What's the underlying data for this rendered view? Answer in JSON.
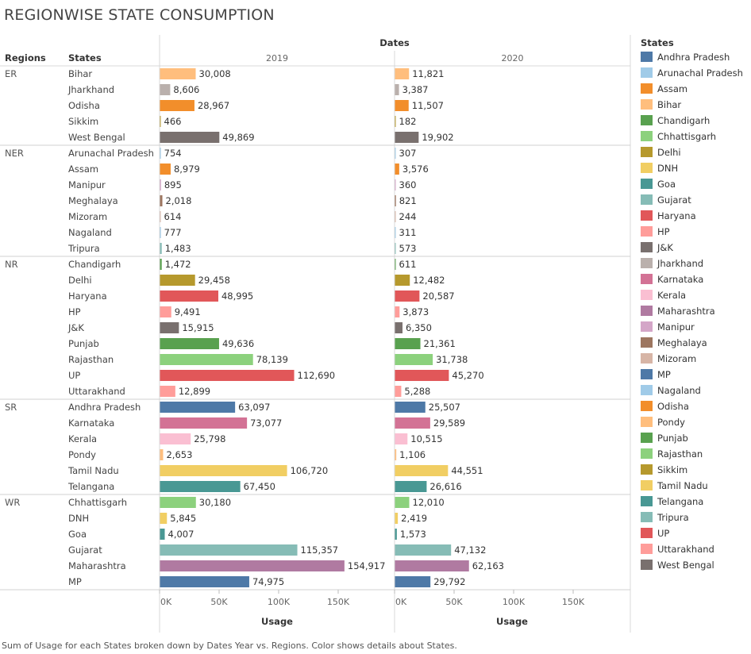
{
  "title": "REGIONWISE STATE CONSUMPTION",
  "caption": "Sum of Usage for each States broken down by Dates Year vs. Regions.  Color shows details about States.",
  "chart_data": {
    "type": "bar",
    "orientation": "horizontal",
    "title": "REGIONWISE STATE CONSUMPTION",
    "column_header": "Dates",
    "row_headers": [
      "Regions",
      "States"
    ],
    "years": [
      "2019",
      "2020"
    ],
    "xlabel": "Usage",
    "xlim": [
      0,
      200000
    ],
    "xticks": [
      0,
      50000,
      100000,
      150000
    ],
    "xtick_labels": [
      "0K",
      "50K",
      "100K",
      "150K"
    ],
    "legend_title": "States",
    "legend_placement": "right",
    "regions": [
      {
        "name": "ER",
        "states": [
          {
            "state": "Bihar",
            "v2019": 30008,
            "v2020": 11821
          },
          {
            "state": "Jharkhand",
            "v2019": 8606,
            "v2020": 3387
          },
          {
            "state": "Odisha",
            "v2019": 28967,
            "v2020": 11507
          },
          {
            "state": "Sikkim",
            "v2019": 466,
            "v2020": 182
          },
          {
            "state": "West Bengal",
            "v2019": 49869,
            "v2020": 19902
          }
        ]
      },
      {
        "name": "NER",
        "states": [
          {
            "state": "Arunachal Pradesh",
            "v2019": 754,
            "v2020": 307
          },
          {
            "state": "Assam",
            "v2019": 8979,
            "v2020": 3576
          },
          {
            "state": "Manipur",
            "v2019": 895,
            "v2020": 360
          },
          {
            "state": "Meghalaya",
            "v2019": 2018,
            "v2020": 821
          },
          {
            "state": "Mizoram",
            "v2019": 614,
            "v2020": 244
          },
          {
            "state": "Nagaland",
            "v2019": 777,
            "v2020": 311
          },
          {
            "state": "Tripura",
            "v2019": 1483,
            "v2020": 573
          }
        ]
      },
      {
        "name": "NR",
        "states": [
          {
            "state": "Chandigarh",
            "v2019": 1472,
            "v2020": 611
          },
          {
            "state": "Delhi",
            "v2019": 29458,
            "v2020": 12482
          },
          {
            "state": "Haryana",
            "v2019": 48995,
            "v2020": 20587
          },
          {
            "state": "HP",
            "v2019": 9491,
            "v2020": 3873
          },
          {
            "state": "J&K",
            "v2019": 15915,
            "v2020": 6350
          },
          {
            "state": "Punjab",
            "v2019": 49636,
            "v2020": 21361
          },
          {
            "state": "Rajasthan",
            "v2019": 78139,
            "v2020": 31738
          },
          {
            "state": "UP",
            "v2019": 112690,
            "v2020": 45270
          },
          {
            "state": "Uttarakhand",
            "v2019": 12899,
            "v2020": 5288
          }
        ]
      },
      {
        "name": "SR",
        "states": [
          {
            "state": "Andhra Pradesh",
            "v2019": 63097,
            "v2020": 25507
          },
          {
            "state": "Karnataka",
            "v2019": 73077,
            "v2020": 29589
          },
          {
            "state": "Kerala",
            "v2019": 25798,
            "v2020": 10515
          },
          {
            "state": "Pondy",
            "v2019": 2653,
            "v2020": 1106
          },
          {
            "state": "Tamil Nadu",
            "v2019": 106720,
            "v2020": 44551
          },
          {
            "state": "Telangana",
            "v2019": 67450,
            "v2020": 26616
          }
        ]
      },
      {
        "name": "WR",
        "states": [
          {
            "state": "Chhattisgarh",
            "v2019": 30180,
            "v2020": 12010
          },
          {
            "state": "DNH",
            "v2019": 5845,
            "v2020": 2419
          },
          {
            "state": "Goa",
            "v2019": 4007,
            "v2020": 1573
          },
          {
            "state": "Gujarat",
            "v2019": 115357,
            "v2020": 47132
          },
          {
            "state": "Maharashtra",
            "v2019": 154917,
            "v2020": 62163
          },
          {
            "state": "MP",
            "v2019": 74975,
            "v2020": 29792
          }
        ]
      }
    ],
    "legend": [
      {
        "state": "Andhra Pradesh",
        "color": "#4e79a7"
      },
      {
        "state": "Arunachal Pradesh",
        "color": "#a0cbe8"
      },
      {
        "state": "Assam",
        "color": "#f28e2b"
      },
      {
        "state": "Bihar",
        "color": "#ffbe7d"
      },
      {
        "state": "Chandigarh",
        "color": "#59a14f"
      },
      {
        "state": "Chhattisgarh",
        "color": "#8cd17d"
      },
      {
        "state": "Delhi",
        "color": "#b6992d"
      },
      {
        "state": "DNH",
        "color": "#f1ce63"
      },
      {
        "state": "Goa",
        "color": "#499894"
      },
      {
        "state": "Gujarat",
        "color": "#86bcb6"
      },
      {
        "state": "Haryana",
        "color": "#e15759"
      },
      {
        "state": "HP",
        "color": "#ff9d9a"
      },
      {
        "state": "J&K",
        "color": "#79706e"
      },
      {
        "state": "Jharkhand",
        "color": "#bab0ac"
      },
      {
        "state": "Karnataka",
        "color": "#d37295"
      },
      {
        "state": "Kerala",
        "color": "#fabfd2"
      },
      {
        "state": "Maharashtra",
        "color": "#b07aa1"
      },
      {
        "state": "Manipur",
        "color": "#d4a6c8"
      },
      {
        "state": "Meghalaya",
        "color": "#9d7660"
      },
      {
        "state": "Mizoram",
        "color": "#d7b5a6"
      },
      {
        "state": "MP",
        "color": "#4e79a7"
      },
      {
        "state": "Nagaland",
        "color": "#a0cbe8"
      },
      {
        "state": "Odisha",
        "color": "#f28e2b"
      },
      {
        "state": "Pondy",
        "color": "#ffbe7d"
      },
      {
        "state": "Punjab",
        "color": "#59a14f"
      },
      {
        "state": "Rajasthan",
        "color": "#8cd17d"
      },
      {
        "state": "Sikkim",
        "color": "#b6992d"
      },
      {
        "state": "Tamil Nadu",
        "color": "#f1ce63"
      },
      {
        "state": "Telangana",
        "color": "#499894"
      },
      {
        "state": "Tripura",
        "color": "#86bcb6"
      },
      {
        "state": "UP",
        "color": "#e15759"
      },
      {
        "state": "Uttarakhand",
        "color": "#ff9d9a"
      },
      {
        "state": "West Bengal",
        "color": "#79706e"
      }
    ]
  }
}
